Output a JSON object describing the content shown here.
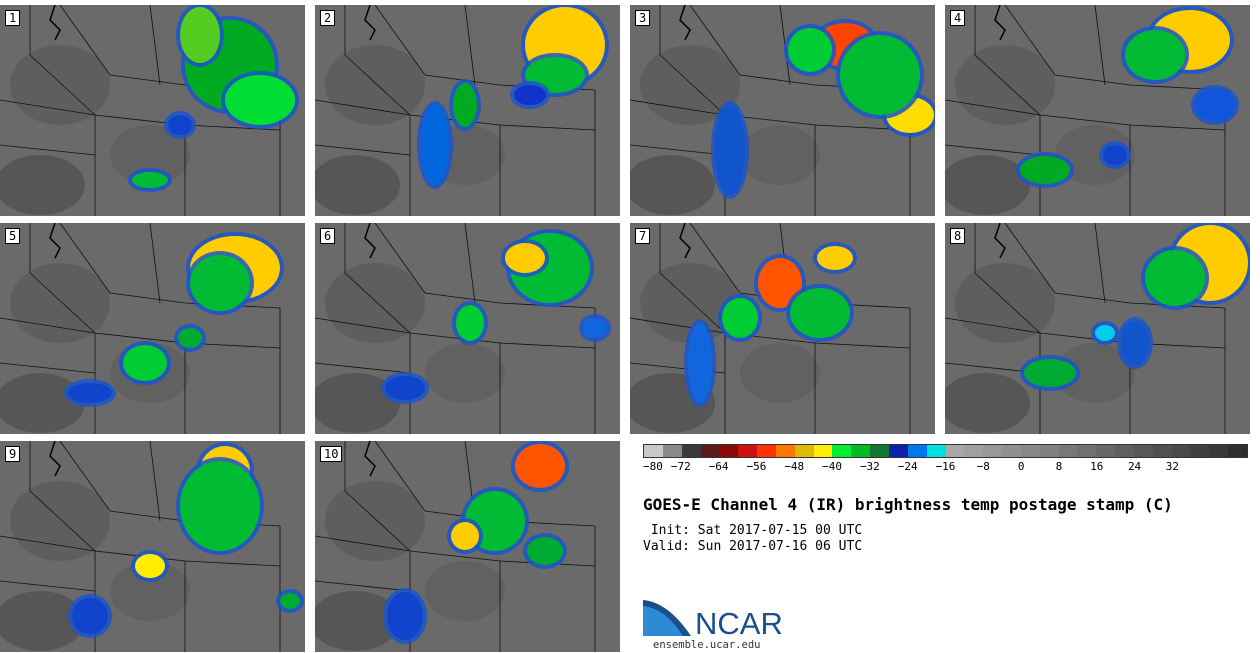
{
  "panels": [
    {
      "label": "1",
      "blobs": [
        [
          230,
          60,
          45,
          45,
          "#00aa22"
        ],
        [
          260,
          95,
          35,
          25,
          "#00dd33"
        ],
        [
          200,
          30,
          20,
          28,
          "#55cc22"
        ],
        [
          180,
          120,
          12,
          10,
          "#1144cc"
        ],
        [
          150,
          175,
          18,
          8,
          "#00bb33"
        ]
      ]
    },
    {
      "label": "2",
      "blobs": [
        [
          250,
          40,
          40,
          38,
          "#ffcc00"
        ],
        [
          240,
          70,
          30,
          18,
          "#00bb33"
        ],
        [
          120,
          140,
          14,
          40,
          "#0066dd"
        ],
        [
          150,
          100,
          12,
          22,
          "#00aa22"
        ],
        [
          215,
          90,
          16,
          10,
          "#1133cc"
        ]
      ]
    },
    {
      "label": "3",
      "blobs": [
        [
          215,
          40,
          30,
          22,
          "#ff4400"
        ],
        [
          280,
          110,
          24,
          18,
          "#ffdd00"
        ],
        [
          250,
          70,
          40,
          40,
          "#00bb33"
        ],
        [
          100,
          145,
          15,
          45,
          "#1155cc"
        ],
        [
          180,
          45,
          22,
          22,
          "#00cc33"
        ]
      ]
    },
    {
      "label": "4",
      "blobs": [
        [
          245,
          35,
          40,
          30,
          "#ffcc00"
        ],
        [
          210,
          50,
          30,
          25,
          "#00bb33"
        ],
        [
          100,
          165,
          25,
          14,
          "#00aa22"
        ],
        [
          170,
          150,
          12,
          10,
          "#1144cc"
        ],
        [
          270,
          100,
          20,
          16,
          "#1155dd"
        ]
      ]
    },
    {
      "label": "5",
      "blobs": [
        [
          235,
          45,
          45,
          32,
          "#ffcc00"
        ],
        [
          220,
          60,
          30,
          28,
          "#00bb33"
        ],
        [
          145,
          140,
          22,
          18,
          "#00cc33"
        ],
        [
          90,
          170,
          22,
          10,
          "#1144cc"
        ],
        [
          190,
          115,
          12,
          10,
          "#00aa33"
        ]
      ]
    },
    {
      "label": "6",
      "blobs": [
        [
          235,
          45,
          40,
          35,
          "#00bb33"
        ],
        [
          210,
          35,
          20,
          15,
          "#ffcc00"
        ],
        [
          155,
          100,
          14,
          18,
          "#00cc33"
        ],
        [
          90,
          165,
          20,
          12,
          "#1144cc"
        ],
        [
          280,
          105,
          12,
          10,
          "#1166dd"
        ]
      ]
    },
    {
      "label": "7",
      "blobs": [
        [
          150,
          60,
          22,
          25,
          "#ff5500"
        ],
        [
          205,
          35,
          18,
          12,
          "#ffcc00"
        ],
        [
          110,
          95,
          18,
          20,
          "#00cc33"
        ],
        [
          190,
          90,
          30,
          25,
          "#00bb33"
        ],
        [
          70,
          140,
          12,
          40,
          "#1166dd"
        ]
      ]
    },
    {
      "label": "8",
      "blobs": [
        [
          265,
          40,
          38,
          38,
          "#ffcc00"
        ],
        [
          230,
          55,
          30,
          28,
          "#00bb33"
        ],
        [
          105,
          150,
          26,
          14,
          "#00aa33"
        ],
        [
          190,
          120,
          14,
          22,
          "#1155cc"
        ],
        [
          160,
          110,
          10,
          8,
          "#00ccee"
        ]
      ]
    },
    {
      "label": "9",
      "blobs": [
        [
          225,
          30,
          25,
          25,
          "#ffcc00"
        ],
        [
          220,
          65,
          40,
          45,
          "#00bb33"
        ],
        [
          150,
          125,
          15,
          12,
          "#ffee00"
        ],
        [
          90,
          175,
          18,
          18,
          "#1144cc"
        ],
        [
          290,
          160,
          10,
          8,
          "#00aa33"
        ]
      ]
    },
    {
      "label": "10",
      "blobs": [
        [
          225,
          25,
          25,
          22,
          "#ff5500"
        ],
        [
          180,
          80,
          30,
          30,
          "#00bb33"
        ],
        [
          150,
          95,
          14,
          14,
          "#ffcc00"
        ],
        [
          90,
          175,
          18,
          24,
          "#1144cc"
        ],
        [
          230,
          110,
          18,
          14,
          "#00aa33"
        ]
      ]
    }
  ],
  "colorbar": {
    "colors": [
      "#c8c8c8",
      "#8a8a8a",
      "#3a3a3a",
      "#5a1a1a",
      "#8a0a0a",
      "#cc1111",
      "#ff3300",
      "#ff7700",
      "#ddbb00",
      "#ffee00",
      "#00ee33",
      "#00bb22",
      "#117733",
      "#0a22aa",
      "#0077ee",
      "#00dddd",
      "#a8a8a8",
      "#a0a0a0",
      "#989898",
      "#909090",
      "#888888",
      "#808080",
      "#787878",
      "#707070",
      "#686868",
      "#606060",
      "#585858",
      "#505050",
      "#484848",
      "#404040",
      "#383838",
      "#2e2e2e"
    ],
    "labels": [
      "−80",
      "−72",
      "−64",
      "−56",
      "−48",
      "−40",
      "−32",
      "−24",
      "−16",
      "−8",
      "0",
      "8",
      "16",
      "24",
      "32"
    ]
  },
  "title": "GOES-E Channel 4 (IR) brightness temp postage stamp (C)",
  "init_line": " Init: Sat 2017-07-15 00 UTC",
  "valid_line": "Valid: Sun 2017-07-16 06 UTC",
  "logo": {
    "text": "NCAR",
    "url": "ensemble.ucar.edu",
    "primary_color": "#1a4f8a",
    "accent_color": "#2f8ad6"
  }
}
